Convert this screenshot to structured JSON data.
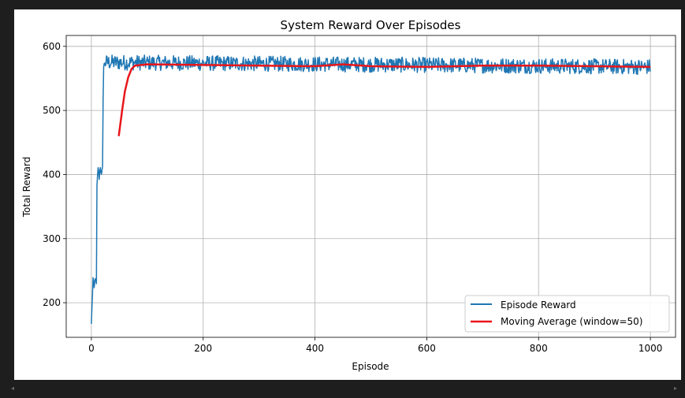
{
  "chart_data": {
    "type": "line",
    "title": "System Reward Over Episodes",
    "xlabel": "Episode",
    "ylabel": "Total Reward",
    "xlim": [
      -45,
      1045
    ],
    "ylim": [
      146,
      617
    ],
    "xticks": [
      0,
      200,
      400,
      600,
      800,
      1000
    ],
    "yticks": [
      200,
      300,
      400,
      500,
      600
    ],
    "grid": true,
    "legend_position": "lower-right",
    "series": [
      {
        "name": "Episode Reward",
        "color": "#1f77b4",
        "style": "noisy",
        "points": [
          [
            0,
            167
          ],
          [
            3,
            238
          ],
          [
            5,
            222
          ],
          [
            7,
            240
          ],
          [
            9,
            228
          ],
          [
            10,
            380
          ],
          [
            12,
            412
          ],
          [
            14,
            395
          ],
          [
            16,
            413
          ],
          [
            18,
            398
          ],
          [
            20,
            410
          ],
          [
            21,
            520
          ],
          [
            22,
            568
          ],
          [
            24,
            575
          ],
          [
            1000,
            568
          ]
        ],
        "noise_amplitude": 12
      },
      {
        "name": "Moving Average (window=50)",
        "color": "#e8161b",
        "style": "smooth",
        "points": [
          [
            49,
            460
          ],
          [
            55,
            500
          ],
          [
            60,
            530
          ],
          [
            66,
            552
          ],
          [
            72,
            565
          ],
          [
            78,
            570
          ],
          [
            100,
            572
          ],
          [
            200,
            571
          ],
          [
            300,
            570
          ],
          [
            400,
            569
          ],
          [
            450,
            572
          ],
          [
            500,
            569
          ],
          [
            600,
            568
          ],
          [
            700,
            570
          ],
          [
            800,
            570
          ],
          [
            900,
            569
          ],
          [
            1000,
            568
          ]
        ]
      }
    ]
  },
  "ui": {
    "scroll_left_icon": "◂",
    "scroll_right_icon": "▸"
  }
}
